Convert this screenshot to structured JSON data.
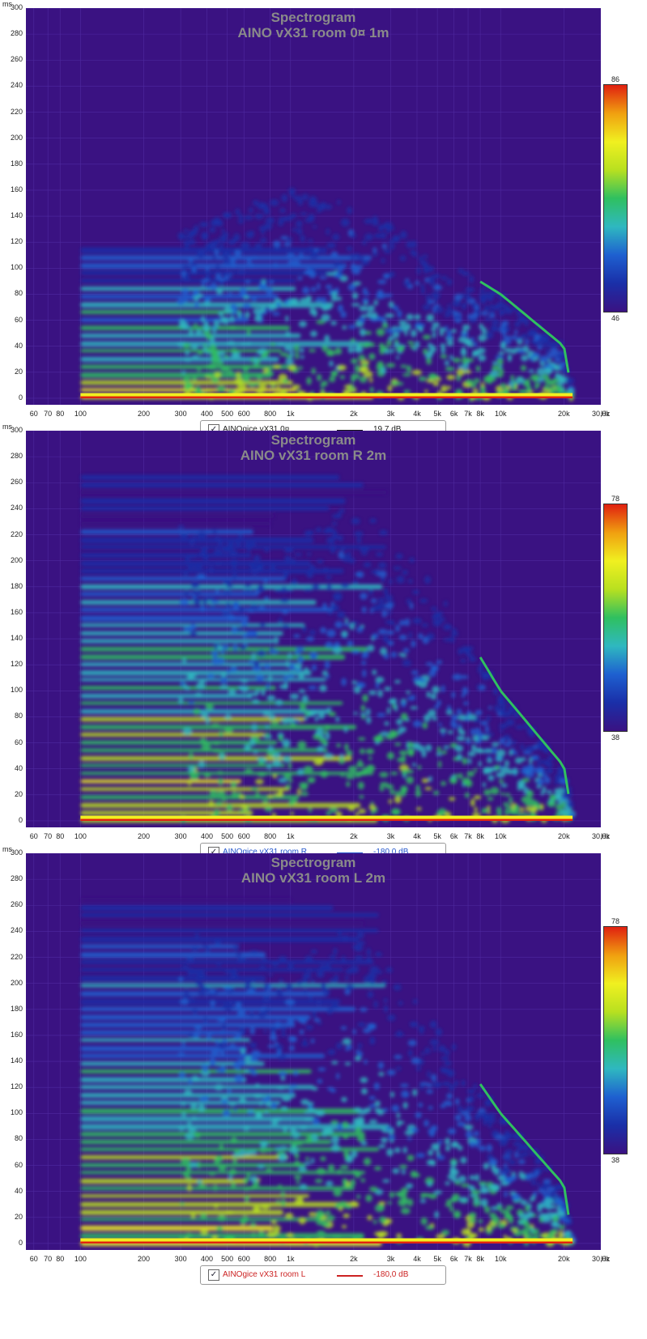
{
  "y_unit": "ms",
  "x_unit": "Hz",
  "y_ticks": [
    "300",
    "280",
    "260",
    "240",
    "220",
    "200",
    "180",
    "160",
    "140",
    "120",
    "100",
    "80",
    "60",
    "40",
    "20",
    "0"
  ],
  "x_ticks": [
    "60",
    "70",
    "80",
    "100",
    "200",
    "300",
    "400",
    "500",
    "600",
    "800",
    "1k",
    "2k",
    "3k",
    "4k",
    "5k",
    "6k",
    "7k",
    "8k",
    "10k",
    "20k",
    "30,0k"
  ],
  "colors": {
    "background": "#3a1282",
    "colormap": [
      "#3a1282",
      "#1a2fa8",
      "#1e60d0",
      "#2fb8c0",
      "#2fc060",
      "#b8e020",
      "#f0f020",
      "#f0a010",
      "#e02010"
    ]
  },
  "chart_data": [
    {
      "type": "heatmap",
      "title": "Spectrogram",
      "subtitle": "AINO vX31 room 0¤ 1m",
      "xlabel": "Hz",
      "ylabel": "ms",
      "xscale": "log",
      "xlim": [
        55,
        30000
      ],
      "ylim": [
        -5,
        300
      ],
      "colorbar": {
        "max": "86",
        "min": "46"
      },
      "legend": {
        "name": "AINOgice vX31 0¤",
        "value": "19,7 dB",
        "line_color": "#111111",
        "text_color": "#222222"
      },
      "decay_profile_ms": [
        [
          100,
          118
        ],
        [
          300,
          130
        ],
        [
          1000,
          160
        ],
        [
          2000,
          150
        ],
        [
          5000,
          110
        ],
        [
          10000,
          80
        ],
        [
          20000,
          40
        ],
        [
          22000,
          2
        ]
      ]
    },
    {
      "type": "heatmap",
      "title": "Spectrogram",
      "subtitle": "AINO vX31 room R 2m",
      "xlabel": "Hz",
      "ylabel": "ms",
      "xscale": "log",
      "xlim": [
        55,
        30000
      ],
      "ylim": [
        -5,
        300
      ],
      "colorbar": {
        "max": "78",
        "min": "38"
      },
      "legend": {
        "name": "AINOgice vX31 room R",
        "value": "-180,0 dB",
        "line_color": "#2255cc",
        "text_color": "#2255cc"
      },
      "decay_profile_ms": [
        [
          100,
          265
        ],
        [
          300,
          230
        ],
        [
          1000,
          210
        ],
        [
          2000,
          250
        ],
        [
          5000,
          180
        ],
        [
          10000,
          100
        ],
        [
          20000,
          42
        ],
        [
          22000,
          2
        ]
      ]
    },
    {
      "type": "heatmap",
      "title": "Spectrogram",
      "subtitle": "AINO vX31 room L 2m",
      "xlabel": "Hz",
      "ylabel": "ms",
      "xscale": "log",
      "xlim": [
        55,
        30000
      ],
      "ylim": [
        -5,
        300
      ],
      "colorbar": {
        "max": "78",
        "min": "38"
      },
      "legend": {
        "name": "AINOgice vX31 room L",
        "value": "-180,0 dB",
        "line_color": "#cc2222",
        "text_color": "#cc2222"
      },
      "decay_profile_ms": [
        [
          100,
          265
        ],
        [
          300,
          240
        ],
        [
          1000,
          220
        ],
        [
          2000,
          245
        ],
        [
          5000,
          170
        ],
        [
          10000,
          100
        ],
        [
          20000,
          45
        ],
        [
          22000,
          2
        ]
      ]
    }
  ]
}
